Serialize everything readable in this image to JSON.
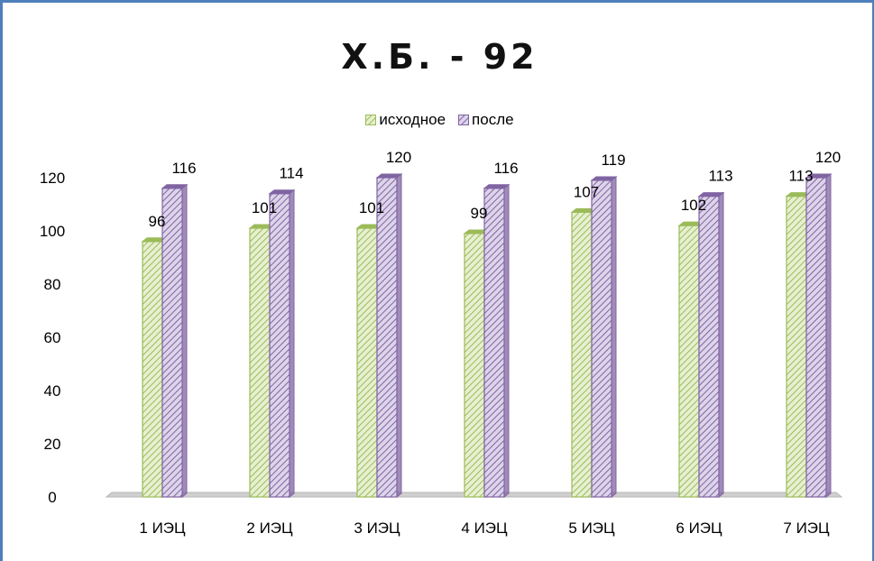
{
  "chart_data": {
    "type": "bar",
    "title": "Х.Б. - 92",
    "categories": [
      "1 ИЭЦ",
      "2 ИЭЦ",
      "3 ИЭЦ",
      "4 ИЭЦ",
      "5 ИЭЦ",
      "6 ИЭЦ",
      "7 ИЭЦ"
    ],
    "series": [
      {
        "name": "исходное",
        "values": [
          96,
          101,
          101,
          99,
          107,
          102,
          113
        ],
        "color": "#9bbb59",
        "fill": "#e6f0d0"
      },
      {
        "name": "после",
        "values": [
          116,
          114,
          120,
          116,
          119,
          113,
          120
        ],
        "color": "#8064a2",
        "fill": "#ddd4ea"
      }
    ],
    "ylim": [
      0,
      120
    ],
    "yticks": [
      0,
      20,
      40,
      60,
      80,
      100,
      120
    ],
    "grid": false,
    "legend_position": "top",
    "bar_style": "3d-hatched"
  }
}
